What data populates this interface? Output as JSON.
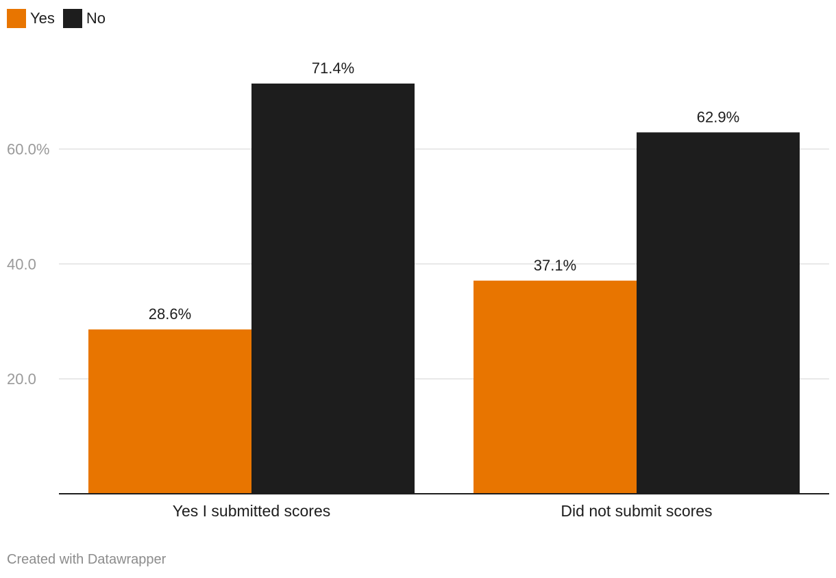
{
  "chart_data": {
    "type": "bar",
    "categories": [
      "Yes I submitted scores",
      "Did not submit scores"
    ],
    "series": [
      {
        "name": "Yes",
        "values": [
          28.6,
          37.1
        ],
        "labels": [
          "28.6%",
          "37.1%"
        ],
        "color": "#e87500"
      },
      {
        "name": "No",
        "values": [
          71.4,
          62.9
        ],
        "labels": [
          "71.4%",
          "62.9%"
        ],
        "color": "#1d1d1d"
      }
    ],
    "yticks": [
      {
        "value": 20,
        "label": "20.0"
      },
      {
        "value": 40,
        "label": "40.0"
      },
      {
        "value": 60,
        "label": "60.0%"
      }
    ],
    "ylim": [
      0,
      71.4
    ],
    "grid": true,
    "legend_position": "top-left",
    "title": "",
    "xlabel": "",
    "ylabel": ""
  },
  "footer": {
    "text": "Created with Datawrapper"
  }
}
